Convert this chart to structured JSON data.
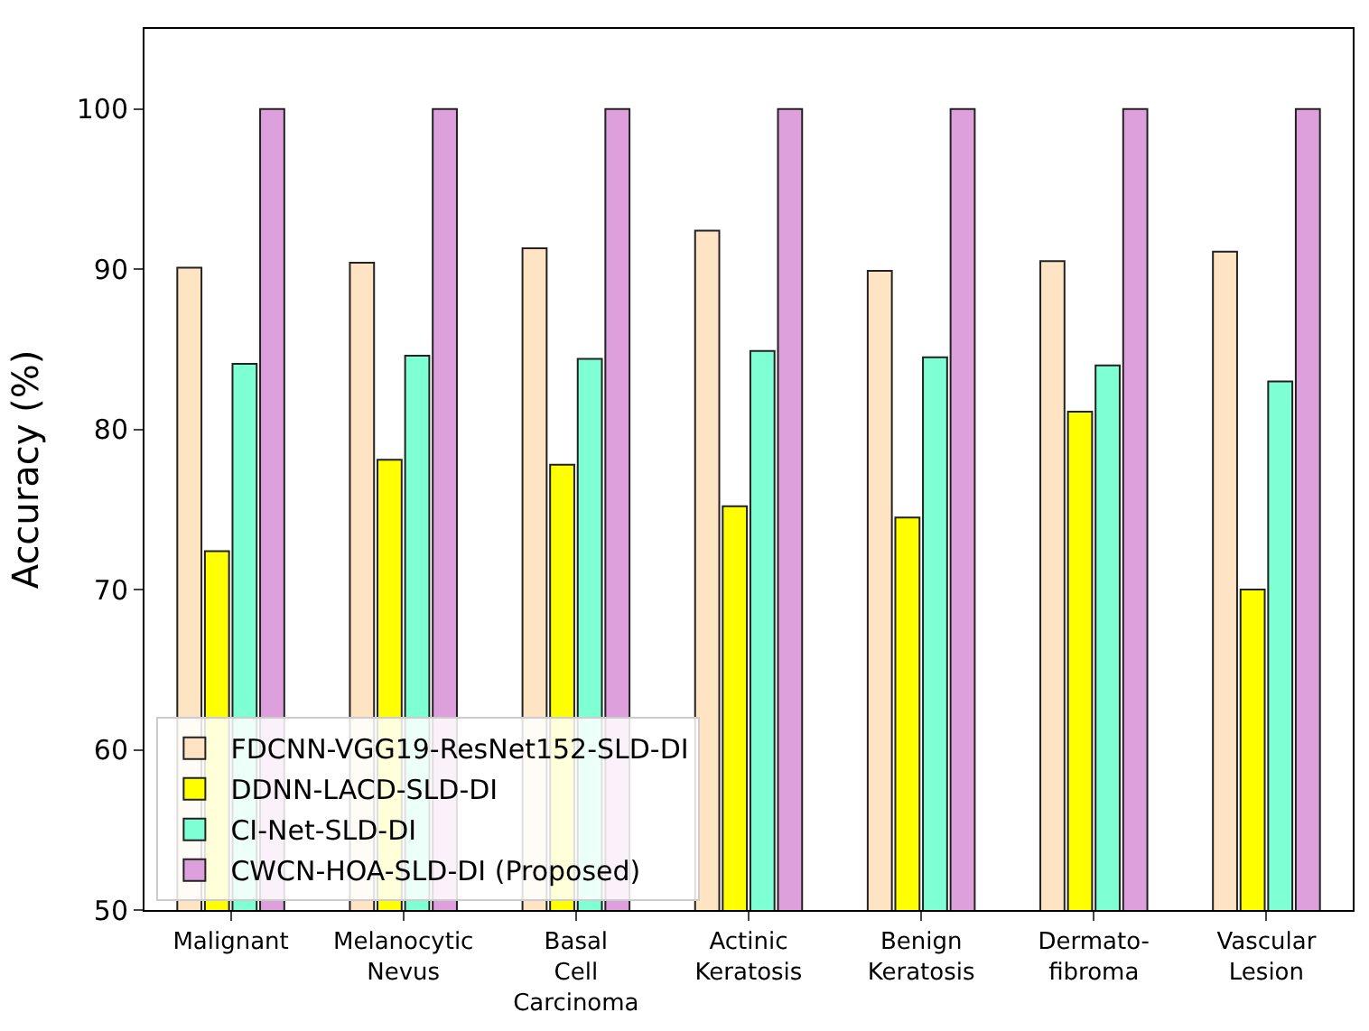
{
  "chart_data": {
    "type": "bar",
    "ylabel": "Accuracy (%)",
    "categories": [
      "Malignant",
      "Melanocytic\nNevus",
      "Basal\nCell\nCarcinoma",
      "Actinic\nKeratosis",
      "Benign\nKeratosis",
      "Dermato-\nfibroma",
      "Vascular\nLesion"
    ],
    "series": [
      {
        "name": "FDCNN-VGG19-ResNet152-SLD-DI",
        "color": "#ffe4c4",
        "values": [
          90.1,
          90.4,
          91.3,
          92.4,
          89.9,
          90.5,
          91.1
        ]
      },
      {
        "name": "DDNN-LACD-SLD-DI",
        "color": "#ffff00",
        "values": [
          72.4,
          78.1,
          77.8,
          75.2,
          74.5,
          81.1,
          70.0
        ]
      },
      {
        "name": "CI-Net-SLD-DI",
        "color": "#7fffd4",
        "values": [
          84.1,
          84.6,
          84.4,
          84.9,
          84.5,
          84.0,
          83.0
        ]
      },
      {
        "name": "CWCN-HOA-SLD-DI (Proposed)",
        "color": "#dda0dd",
        "values": [
          100,
          100,
          100,
          100,
          100,
          100,
          100
        ]
      }
    ],
    "ylim": [
      50,
      105
    ],
    "yticks": [
      50,
      60,
      70,
      80,
      90,
      100
    ],
    "legend": "bottom left"
  }
}
